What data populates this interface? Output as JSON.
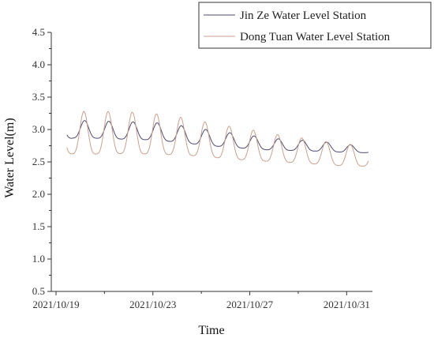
{
  "chart_data": {
    "type": "line",
    "xlabel": "Time",
    "ylabel": "Water Level(m)",
    "xlim": [
      "2021/10/19",
      "2021/11/01"
    ],
    "ylim": [
      0.5,
      4.5
    ],
    "x_ticks": [
      "2021/10/19",
      "2021/10/23",
      "2021/10/27",
      "2021/10/31"
    ],
    "y_ticks": [
      "0.5",
      "1.0",
      "1.5",
      "2.0",
      "2.5",
      "3.0",
      "3.5",
      "4.0",
      "4.5"
    ],
    "legend_position": "top-right",
    "grid": false,
    "series": [
      {
        "name": "Jin Ze Water Level Station",
        "color": "#4b4b6e",
        "x": [
          "2021/10/19",
          "2021/10/20",
          "2021/10/21",
          "2021/10/22",
          "2021/10/23",
          "2021/10/24",
          "2021/10/25",
          "2021/10/26",
          "2021/10/27",
          "2021/10/28",
          "2021/10/29",
          "2021/10/30",
          "2021/10/31",
          "2021/11/01"
        ],
        "peaks": [
          3.12,
          3.14,
          3.13,
          3.12,
          3.11,
          3.07,
          3.01,
          2.96,
          2.91,
          2.86,
          2.84,
          2.81,
          2.78,
          2.68
        ],
        "troughs": [
          2.78,
          2.82,
          2.8,
          2.79,
          2.78,
          2.75,
          2.71,
          2.68,
          2.66,
          2.64,
          2.64,
          2.63,
          2.62,
          2.63
        ]
      },
      {
        "name": "Dong Tuan Water Level Station",
        "color": "#c9a08d",
        "x": [
          "2021/10/19",
          "2021/10/20",
          "2021/10/21",
          "2021/10/22",
          "2021/10/23",
          "2021/10/24",
          "2021/10/25",
          "2021/10/26",
          "2021/10/27",
          "2021/10/28",
          "2021/10/29",
          "2021/10/30",
          "2021/10/31",
          "2021/11/01"
        ],
        "peaks": [
          3.28,
          3.28,
          3.28,
          3.27,
          3.25,
          3.2,
          3.13,
          3.06,
          3.0,
          2.93,
          2.88,
          2.82,
          2.78,
          2.72
        ],
        "troughs": [
          2.5,
          2.47,
          2.48,
          2.49,
          2.48,
          2.48,
          2.47,
          2.44,
          2.42,
          2.41,
          2.4,
          2.38,
          2.36,
          2.37
        ]
      }
    ]
  }
}
